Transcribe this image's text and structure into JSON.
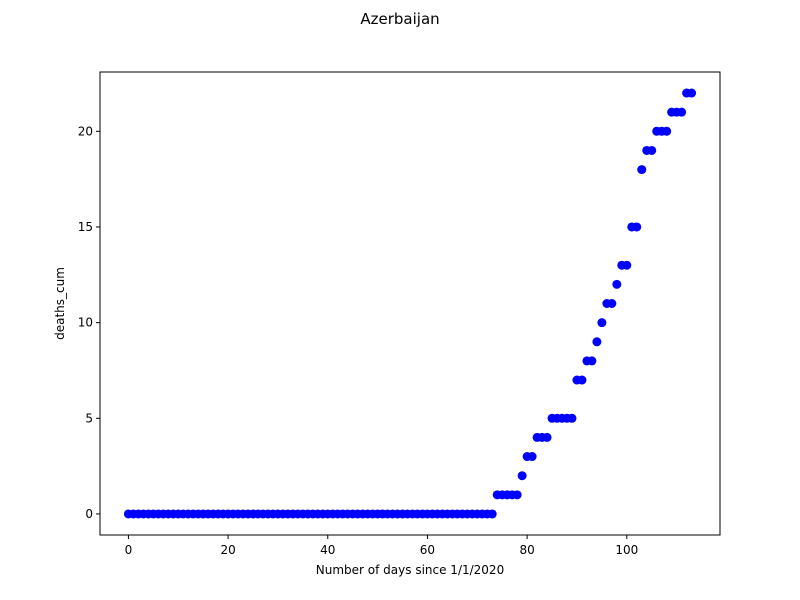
{
  "chart_data": {
    "type": "scatter",
    "title": "Azerbaijan",
    "xlabel": "Number of days since 1/1/2020",
    "ylabel": "deaths_cum",
    "xlim": [
      -5.7,
      118.7
    ],
    "ylim": [
      -1.1,
      23.1
    ],
    "xticks": [
      0,
      20,
      40,
      60,
      80,
      100
    ],
    "yticks": [
      0,
      5,
      10,
      15,
      20
    ],
    "grid": false,
    "marker_color": "#0000ff",
    "series": [
      {
        "x": [
          0,
          1,
          2,
          3,
          4,
          5,
          6,
          7,
          8,
          9,
          10,
          11,
          12,
          13,
          14,
          15,
          16,
          17,
          18,
          19,
          20,
          21,
          22,
          23,
          24,
          25,
          26,
          27,
          28,
          29,
          30,
          31,
          32,
          33,
          34,
          35,
          36,
          37,
          38,
          39,
          40,
          41,
          42,
          43,
          44,
          45,
          46,
          47,
          48,
          49,
          50,
          51,
          52,
          53,
          54,
          55,
          56,
          57,
          58,
          59,
          60,
          61,
          62,
          63,
          64,
          65,
          66,
          67,
          68,
          69,
          70,
          71,
          72,
          73,
          74,
          75,
          76,
          77,
          78,
          79,
          80,
          81,
          82,
          83,
          84,
          85,
          86,
          87,
          88,
          89,
          90,
          91,
          92,
          93,
          94,
          95,
          96,
          97,
          98,
          99,
          100,
          101,
          102,
          103,
          104,
          105,
          106,
          107,
          108,
          109,
          110,
          111,
          112,
          113
        ],
        "y": [
          0,
          0,
          0,
          0,
          0,
          0,
          0,
          0,
          0,
          0,
          0,
          0,
          0,
          0,
          0,
          0,
          0,
          0,
          0,
          0,
          0,
          0,
          0,
          0,
          0,
          0,
          0,
          0,
          0,
          0,
          0,
          0,
          0,
          0,
          0,
          0,
          0,
          0,
          0,
          0,
          0,
          0,
          0,
          0,
          0,
          0,
          0,
          0,
          0,
          0,
          0,
          0,
          0,
          0,
          0,
          0,
          0,
          0,
          0,
          0,
          0,
          0,
          0,
          0,
          0,
          0,
          0,
          0,
          0,
          0,
          0,
          0,
          0,
          0,
          1,
          1,
          1,
          1,
          1,
          2,
          3,
          3,
          4,
          4,
          4,
          5,
          5,
          5,
          5,
          5,
          7,
          7,
          8,
          8,
          9,
          10,
          11,
          11,
          12,
          13,
          13,
          15,
          15,
          18,
          19,
          19,
          20,
          20,
          20,
          21,
          21,
          21,
          22,
          22
        ]
      }
    ]
  }
}
